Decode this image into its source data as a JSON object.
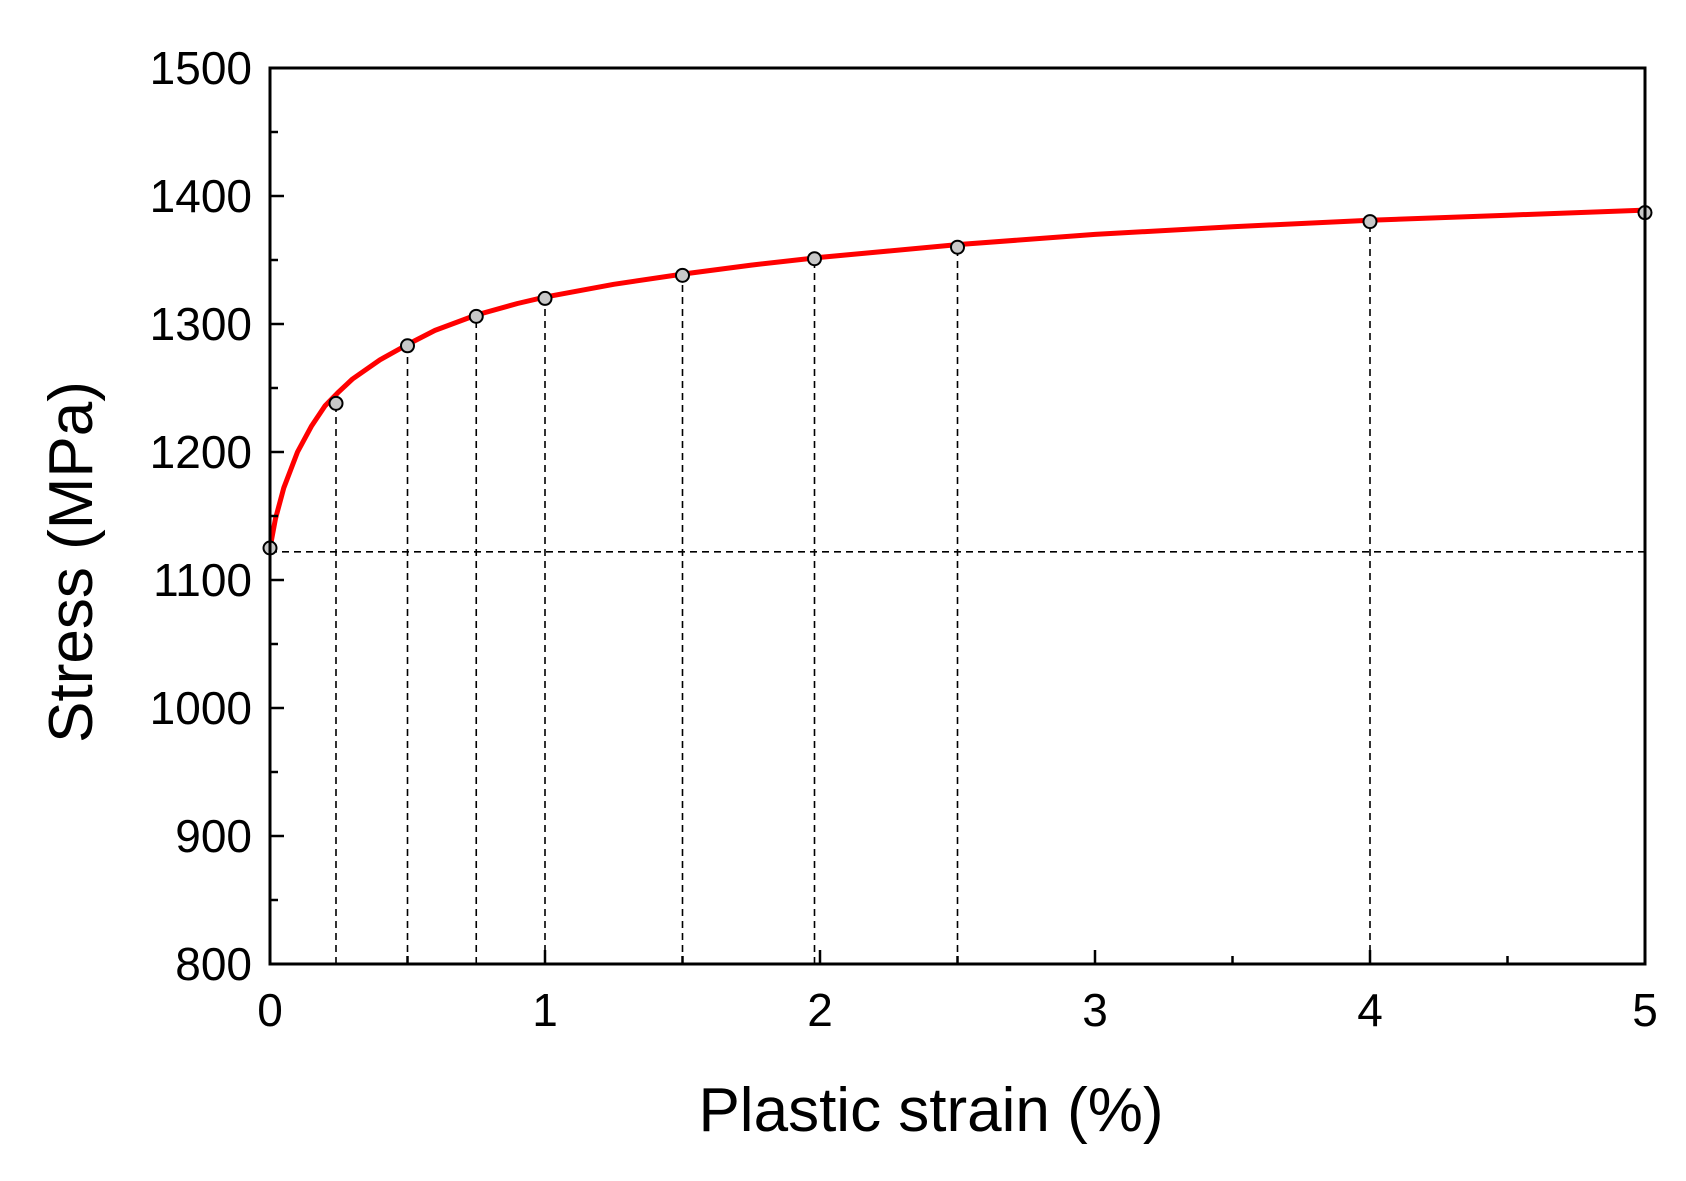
{
  "chart_data": {
    "type": "line",
    "title": "",
    "xlabel": "Plastic strain (%)",
    "ylabel": "Stress (MPa)",
    "xlim": [
      0,
      5
    ],
    "ylim": [
      800,
      1500
    ],
    "x_ticks": [
      "0",
      "1",
      "2",
      "3",
      "4",
      "5"
    ],
    "y_ticks": [
      "800",
      "900",
      "1000",
      "1100",
      "1200",
      "1300",
      "1400",
      "1500"
    ],
    "x_minor_step": 0.5,
    "y_minor_step": 50,
    "grid": false,
    "legend": "none",
    "colors": {
      "curve": "#ff0000",
      "marker_fill": "#c8c8c8",
      "marker_edge": "#000000",
      "guide_lines": "#000000",
      "axes": "#000000"
    },
    "series": [
      {
        "style": "line",
        "x": [
          0,
          0.02,
          0.05,
          0.1,
          0.15,
          0.2,
          0.25,
          0.3,
          0.4,
          0.5,
          0.6,
          0.75,
          0.9,
          1.0,
          1.25,
          1.5,
          1.75,
          2.0,
          2.25,
          2.5,
          3.0,
          3.5,
          4.0,
          4.5,
          5.0
        ],
        "y": [
          1125,
          1148,
          1172,
          1200,
          1220,
          1236,
          1247,
          1257,
          1272,
          1284,
          1295,
          1307,
          1316,
          1321,
          1331,
          1339,
          1346,
          1352,
          1357,
          1362,
          1370,
          1376,
          1381,
          1385,
          1389
        ]
      },
      {
        "style": "markers",
        "x": [
          0,
          0.24,
          0.5,
          0.75,
          1.0,
          1.5,
          1.98,
          2.5,
          4.0,
          5.0
        ],
        "y": [
          1125,
          1238,
          1283,
          1306,
          1320,
          1338,
          1351,
          1360,
          1380,
          1387
        ]
      }
    ],
    "reference_lines": {
      "horizontal_y": 1122,
      "vertical_x": [
        0.24,
        0.5,
        0.75,
        1.0,
        1.5,
        1.98,
        2.5,
        4.0
      ]
    }
  }
}
